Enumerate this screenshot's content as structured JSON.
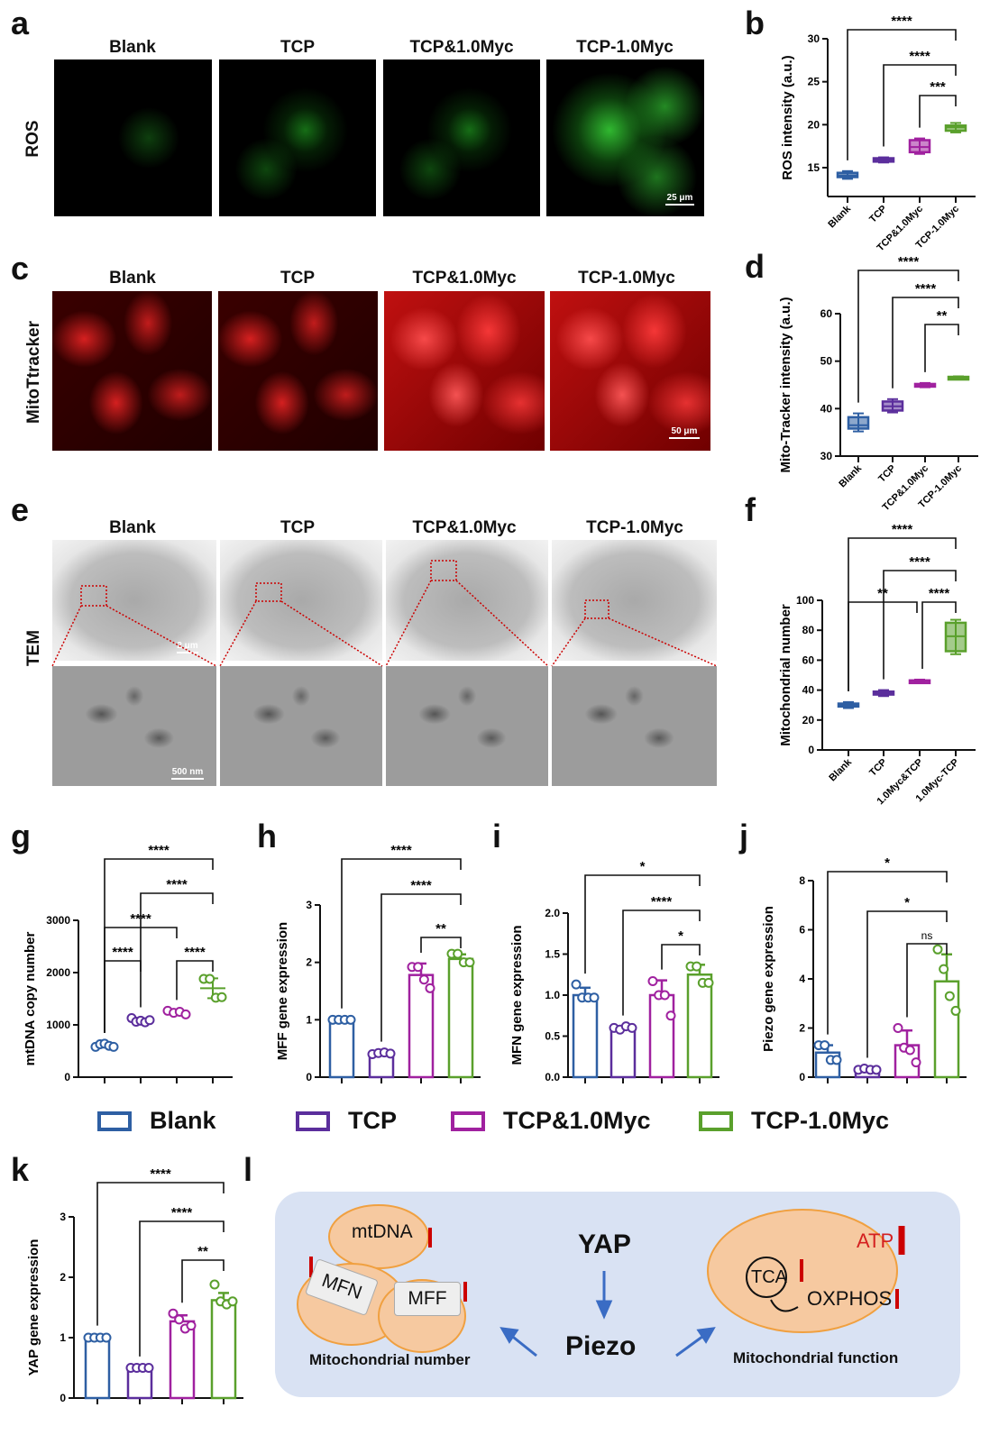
{
  "panel_labels": [
    "a",
    "b",
    "c",
    "d",
    "e",
    "f",
    "g",
    "h",
    "i",
    "j",
    "k",
    "l"
  ],
  "image_rows": [
    {
      "row_label": "ROS",
      "columns": [
        "Blank",
        "TCP",
        "TCP&1.0Myc",
        "TCP-1.0Myc"
      ],
      "scale_bar": "25 μm"
    },
    {
      "row_label": "MitoTtracker",
      "columns": [
        "Blank",
        "TCP",
        "TCP&1.0Myc",
        "TCP-1.0Myc"
      ],
      "scale_bar": "50 μm"
    },
    {
      "row_label": "TEM",
      "columns": [
        "Blank",
        "TCP",
        "TCP&1.0Myc",
        "TCP-1.0Myc"
      ],
      "scale_bar_top": "2 μm",
      "scale_bar_bottom": "500 nm"
    }
  ],
  "legend": [
    {
      "label": "Blank",
      "color": "#2e5fa3"
    },
    {
      "label": "TCP",
      "color": "#5b2e9c"
    },
    {
      "label": "TCP&1.0Myc",
      "color": "#a0219f"
    },
    {
      "label": "TCP-1.0Myc",
      "color": "#5aa02c"
    }
  ],
  "schematic": {
    "mtdna": "mtDNA",
    "mfn": "MFN",
    "mff": "MFF",
    "yap": "YAP",
    "piezo": "Piezo",
    "left_caption": "Mitochondrial number",
    "tca": "TCA",
    "oxphos": "OXPHOS",
    "atp": "ATP",
    "right_caption": "Mitochondrial function"
  },
  "chart_data": [
    {
      "id": "b",
      "type": "box",
      "ylabel": "ROS intensity (a.u.)",
      "yticks": [
        15,
        20,
        25,
        30
      ],
      "ylim": [
        12,
        30
      ],
      "categories": [
        "Blank",
        "TCP",
        "TCP&1.0Myc",
        "TCP-1.0Myc"
      ],
      "boxes": [
        {
          "min": 13.7,
          "q1": 13.9,
          "median": 14.1,
          "q3": 14.4,
          "max": 14.6
        },
        {
          "min": 15.6,
          "q1": 15.7,
          "median": 15.9,
          "q3": 16.1,
          "max": 16.2
        },
        {
          "min": 16.6,
          "q1": 16.8,
          "median": 17.4,
          "q3": 18.2,
          "max": 18.4
        },
        {
          "min": 19.1,
          "q1": 19.3,
          "median": 19.7,
          "q3": 19.9,
          "max": 20.2
        }
      ],
      "brackets": [
        {
          "from": 0,
          "to": 3,
          "label": "****",
          "level": 0
        },
        {
          "from": 1,
          "to": 3,
          "label": "****",
          "level": 1
        },
        {
          "from": 2,
          "to": 3,
          "label": "***",
          "level": 2
        }
      ]
    },
    {
      "id": "d",
      "type": "box",
      "ylabel": "Mito-Tracker intensity (a.u.)",
      "yticks": [
        30,
        40,
        50,
        60
      ],
      "ylim": [
        30,
        62
      ],
      "categories": [
        "Blank",
        "TCP",
        "TCP&1.0Myc",
        "TCP-1.0Myc"
      ],
      "boxes": [
        {
          "min": 35.2,
          "q1": 35.8,
          "median": 36.5,
          "q3": 38.2,
          "max": 39
        },
        {
          "min": 39.2,
          "q1": 39.6,
          "median": 40.5,
          "q3": 41.5,
          "max": 42
        },
        {
          "min": 44.5,
          "q1": 44.7,
          "median": 45,
          "q3": 45.2,
          "max": 45.4
        },
        {
          "min": 46.2,
          "q1": 46.3,
          "median": 46.5,
          "q3": 46.7,
          "max": 46.8
        }
      ],
      "brackets": [
        {
          "from": 0,
          "to": 3,
          "label": "****",
          "level": 0
        },
        {
          "from": 1,
          "to": 3,
          "label": "****",
          "level": 1
        },
        {
          "from": 2,
          "to": 3,
          "label": "**",
          "level": 2
        }
      ]
    },
    {
      "id": "f",
      "type": "box",
      "ylabel": "Mitochondrial  number",
      "yticks": [
        0,
        20,
        40,
        60,
        80,
        100
      ],
      "ylim": [
        0,
        100
      ],
      "categories": [
        "Blank",
        "TCP",
        "1.0Myc&TCP",
        "1.0Myc-TCP"
      ],
      "boxes": [
        {
          "min": 28,
          "q1": 29,
          "median": 30,
          "q3": 31,
          "max": 32
        },
        {
          "min": 36,
          "q1": 37,
          "median": 38,
          "q3": 39,
          "max": 40
        },
        {
          "min": 45,
          "q1": 45.5,
          "median": 46,
          "q3": 46.5,
          "max": 47
        },
        {
          "min": 64,
          "q1": 66,
          "median": 76,
          "q3": 85,
          "max": 87
        }
      ],
      "brackets": [
        {
          "from": 0,
          "to": 3,
          "label": "****",
          "level": 0
        },
        {
          "from": 1,
          "to": 3,
          "label": "****",
          "level": 1
        },
        {
          "from": 0,
          "to": 2,
          "label": "**",
          "level": 2
        },
        {
          "from": 2,
          "to": 3,
          "label": "****",
          "level": 2
        }
      ]
    },
    {
      "id": "g",
      "type": "scatter",
      "ylabel": "mtDNA copy number",
      "yticks": [
        0,
        1000,
        2000,
        3000
      ],
      "ylim": [
        0,
        3000
      ],
      "categories": [
        "Blank",
        "TCP",
        "TCP&1.0Myc",
        "TCP-1.0Myc"
      ],
      "groups": [
        {
          "mean": 610,
          "sd": 30,
          "points": [
            580,
            630,
            640,
            600,
            580
          ]
        },
        {
          "mean": 1075,
          "sd": 40,
          "points": [
            1130,
            1060,
            1080,
            1050,
            1090
          ]
        },
        {
          "mean": 1240,
          "sd": 30,
          "points": [
            1270,
            1230,
            1250,
            1200
          ]
        },
        {
          "mean": 1700,
          "sd": 190,
          "points": [
            1880,
            1880,
            1520,
            1530
          ]
        }
      ],
      "brackets": [
        {
          "from": 0,
          "to": 3,
          "label": "****",
          "level": 0
        },
        {
          "from": 1,
          "to": 3,
          "label": "****",
          "level": 1
        },
        {
          "from": 0,
          "to": 2,
          "label": "****",
          "level": 2
        },
        {
          "from": 0,
          "to": 1,
          "label": "****",
          "level": 3
        },
        {
          "from": 2,
          "to": 3,
          "label": "****",
          "level": 3
        }
      ]
    },
    {
      "id": "h",
      "type": "bar",
      "ylabel": "MFF gene expression",
      "yticks": [
        0,
        1,
        2,
        3
      ],
      "ylim": [
        0,
        3
      ],
      "categories": [
        "Blank",
        "TCP",
        "TCP&1.0Myc",
        "TCP-1.0Myc"
      ],
      "groups": [
        {
          "mean": 1.0,
          "sd": 0.01,
          "points": [
            1,
            1,
            1,
            1
          ]
        },
        {
          "mean": 0.41,
          "sd": 0.02,
          "points": [
            0.4,
            0.42,
            0.43,
            0.41
          ]
        },
        {
          "mean": 1.78,
          "sd": 0.2,
          "points": [
            1.92,
            1.92,
            1.7,
            1.55
          ]
        },
        {
          "mean": 2.06,
          "sd": 0.08,
          "points": [
            2.15,
            2.15,
            2.0,
            2.0
          ]
        }
      ],
      "brackets": [
        {
          "from": 0,
          "to": 3,
          "label": "****",
          "level": 0
        },
        {
          "from": 1,
          "to": 3,
          "label": "****",
          "level": 1
        },
        {
          "from": 2,
          "to": 3,
          "label": "**",
          "level": 2
        }
      ]
    },
    {
      "id": "i",
      "type": "bar",
      "ylabel": "MFN gene expression",
      "yticks": [
        0.0,
        0.5,
        1.0,
        1.5,
        2.0
      ],
      "ylim": [
        0,
        2
      ],
      "tick_decimals": 1,
      "categories": [
        "Blank",
        "TCP",
        "TCP&1.0Myc",
        "TCP-1.0Myc"
      ],
      "groups": [
        {
          "mean": 1.0,
          "sd": 0.09,
          "points": [
            1.13,
            0.97,
            0.97,
            0.97
          ]
        },
        {
          "mean": 0.6,
          "sd": 0.02,
          "points": [
            0.6,
            0.58,
            0.62,
            0.6
          ]
        },
        {
          "mean": 1.0,
          "sd": 0.18,
          "points": [
            1.17,
            1.0,
            1.0,
            0.75
          ]
        },
        {
          "mean": 1.25,
          "sd": 0.12,
          "points": [
            1.35,
            1.35,
            1.15,
            1.15
          ]
        }
      ],
      "brackets": [
        {
          "from": 0,
          "to": 3,
          "label": "*",
          "level": 0
        },
        {
          "from": 1,
          "to": 3,
          "label": "****",
          "level": 1
        },
        {
          "from": 2,
          "to": 3,
          "label": "*",
          "level": 2
        }
      ]
    },
    {
      "id": "j",
      "type": "bar",
      "ylabel": "Piezo gene expression",
      "yticks": [
        0,
        2,
        4,
        6,
        8
      ],
      "ylim": [
        0,
        8
      ],
      "categories": [
        "Blank",
        "TCP",
        "TCP&1.0Myc",
        "TCP-1.0Myc"
      ],
      "groups": [
        {
          "mean": 1.0,
          "sd": 0.3,
          "points": [
            1.3,
            1.3,
            0.7,
            0.7
          ]
        },
        {
          "mean": 0.3,
          "sd": 0.05,
          "points": [
            0.3,
            0.35,
            0.3,
            0.3
          ]
        },
        {
          "mean": 1.3,
          "sd": 0.6,
          "points": [
            2.0,
            1.2,
            1.1,
            0.6
          ]
        },
        {
          "mean": 3.9,
          "sd": 1.1,
          "points": [
            5.2,
            4.4,
            3.3,
            2.7
          ]
        }
      ],
      "brackets": [
        {
          "from": 0,
          "to": 3,
          "label": "*",
          "level": 0
        },
        {
          "from": 1,
          "to": 3,
          "label": "*",
          "level": 1
        },
        {
          "from": 2,
          "to": 3,
          "label": "ns",
          "level": 2
        }
      ]
    },
    {
      "id": "k",
      "type": "bar",
      "ylabel": "YAP gene expression",
      "yticks": [
        0,
        1,
        2,
        3
      ],
      "ylim": [
        0,
        3
      ],
      "categories": [
        "Blank",
        "TCP",
        "TCP&1.0Myc",
        "TCP-1.0Myc"
      ],
      "groups": [
        {
          "mean": 1.0,
          "sd": 0.02,
          "points": [
            1,
            1,
            1,
            1
          ]
        },
        {
          "mean": 0.5,
          "sd": 0.01,
          "points": [
            0.5,
            0.5,
            0.5,
            0.5
          ]
        },
        {
          "mean": 1.27,
          "sd": 0.1,
          "points": [
            1.4,
            1.3,
            1.15,
            1.2
          ]
        },
        {
          "mean": 1.62,
          "sd": 0.12,
          "points": [
            1.88,
            1.6,
            1.55,
            1.6
          ]
        }
      ],
      "brackets": [
        {
          "from": 0,
          "to": 3,
          "label": "****",
          "level": 0
        },
        {
          "from": 1,
          "to": 3,
          "label": "****",
          "level": 1
        },
        {
          "from": 2,
          "to": 3,
          "label": "**",
          "level": 2
        }
      ]
    }
  ]
}
